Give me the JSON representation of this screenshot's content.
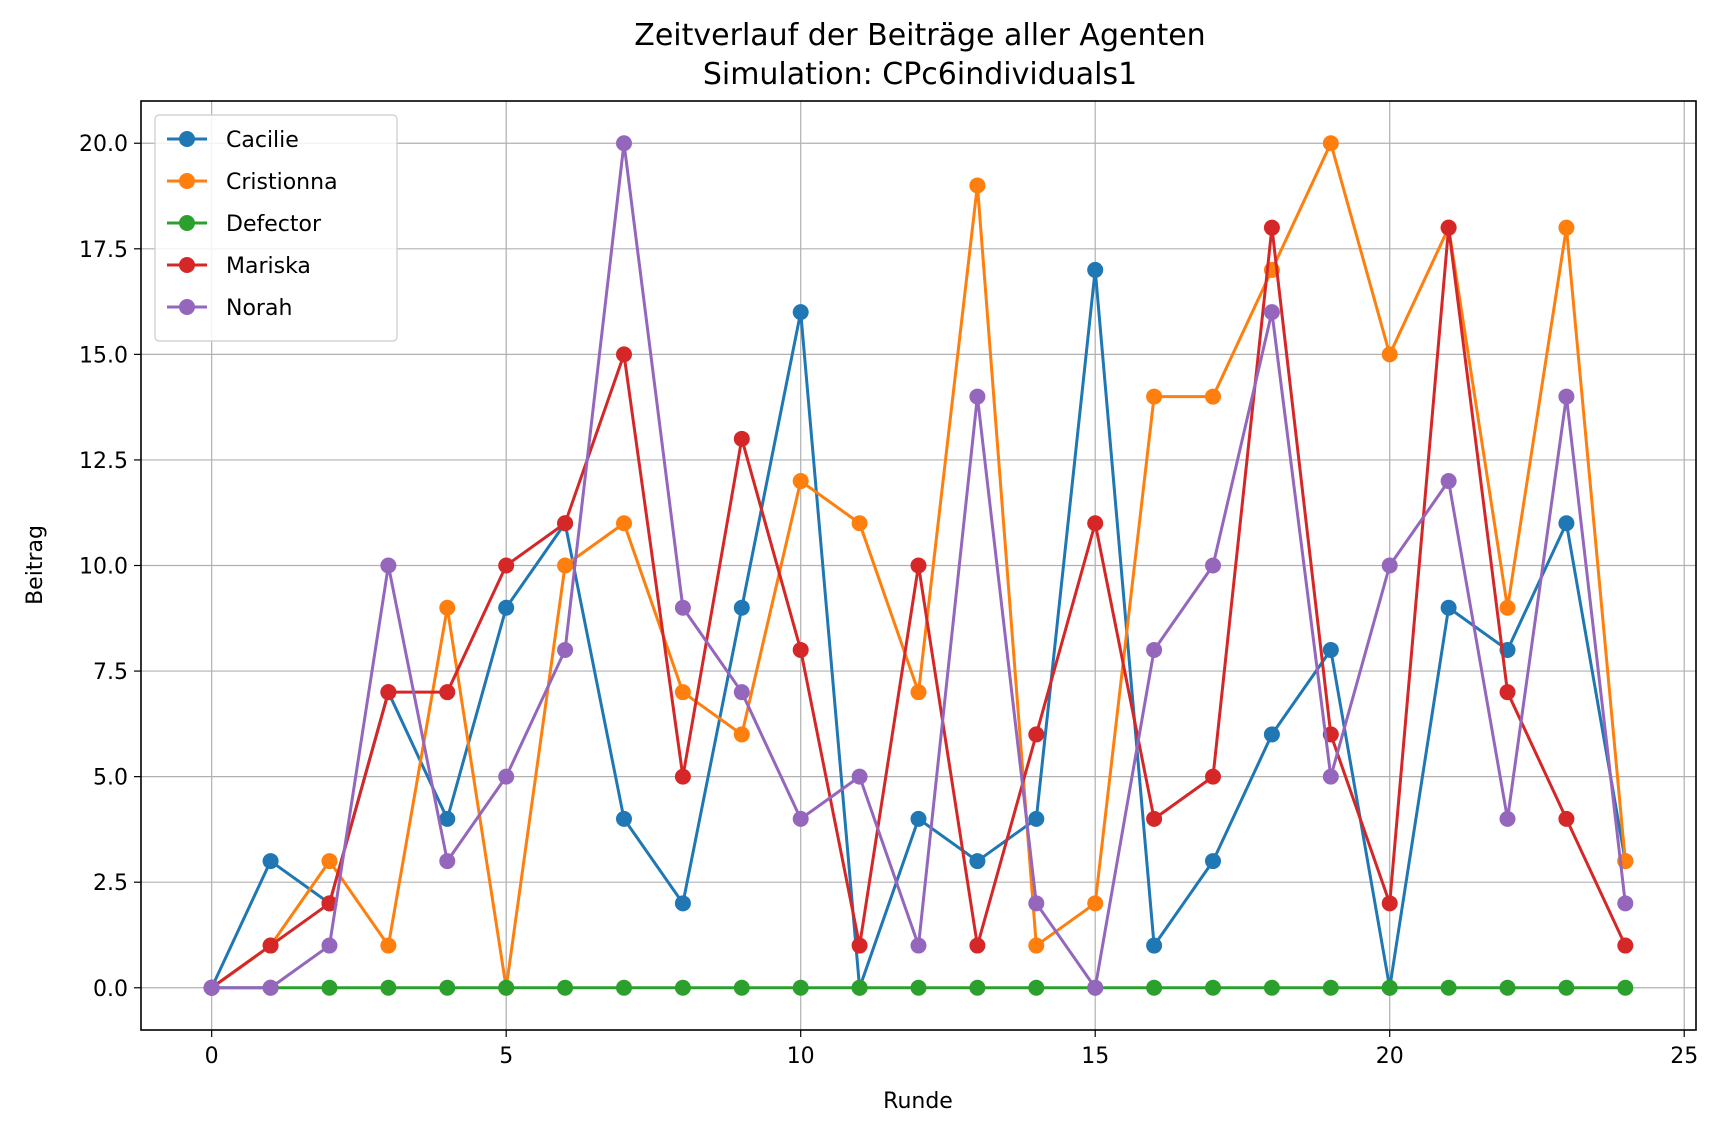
{
  "chart_data": {
    "type": "line",
    "title": "Zeitverlauf der Beiträge aller Agenten",
    "subtitle": "Simulation: CPc6individuals1",
    "xlabel": "Runde",
    "ylabel": "Beitrag",
    "xlim": [
      -1.2,
      25.2
    ],
    "ylim": [
      -1.0,
      21.0
    ],
    "xticks": [
      0,
      5,
      10,
      15,
      20,
      25
    ],
    "xtick_labels": [
      "0",
      "5",
      "10",
      "15",
      "20",
      "25"
    ],
    "yticks": [
      0.0,
      2.5,
      5.0,
      7.5,
      10.0,
      12.5,
      15.0,
      17.5,
      20.0
    ],
    "ytick_labels": [
      "0.0",
      "2.5",
      "5.0",
      "7.5",
      "10.0",
      "12.5",
      "15.0",
      "17.5",
      "20.0"
    ],
    "grid": true,
    "legend_position": "top-left",
    "x": [
      0,
      1,
      2,
      3,
      4,
      5,
      6,
      7,
      8,
      9,
      10,
      11,
      12,
      13,
      14,
      15,
      16,
      17,
      18,
      19,
      20,
      21,
      22,
      23,
      24
    ],
    "series": [
      {
        "name": "Cacilie",
        "color": "#1f77b4",
        "values": [
          0,
          3,
          2,
          7,
          4,
          9,
          11,
          4,
          2,
          9,
          16,
          0,
          4,
          3,
          4,
          17,
          1,
          3,
          6,
          8,
          0,
          9,
          8,
          11,
          3
        ]
      },
      {
        "name": "Cristionna",
        "color": "#ff7f0e",
        "values": [
          0,
          1,
          3,
          1,
          9,
          0,
          10,
          11,
          7,
          6,
          12,
          11,
          7,
          19,
          1,
          2,
          14,
          14,
          17,
          20,
          15,
          18,
          9,
          18,
          3
        ]
      },
      {
        "name": "Defector",
        "color": "#2ca02c",
        "values": [
          0,
          0,
          0,
          0,
          0,
          0,
          0,
          0,
          0,
          0,
          0,
          0,
          0,
          0,
          0,
          0,
          0,
          0,
          0,
          0,
          0,
          0,
          0,
          0,
          0
        ]
      },
      {
        "name": "Mariska",
        "color": "#d62728",
        "values": [
          0,
          1,
          2,
          7,
          7,
          10,
          11,
          15,
          5,
          13,
          8,
          1,
          10,
          1,
          6,
          11,
          4,
          5,
          18,
          6,
          2,
          18,
          7,
          4,
          1
        ]
      },
      {
        "name": "Norah",
        "color": "#9467bd",
        "values": [
          0,
          0,
          1,
          10,
          3,
          5,
          8,
          20,
          9,
          7,
          4,
          5,
          1,
          14,
          2,
          0,
          8,
          10,
          16,
          5,
          10,
          12,
          4,
          14,
          2
        ]
      }
    ]
  }
}
